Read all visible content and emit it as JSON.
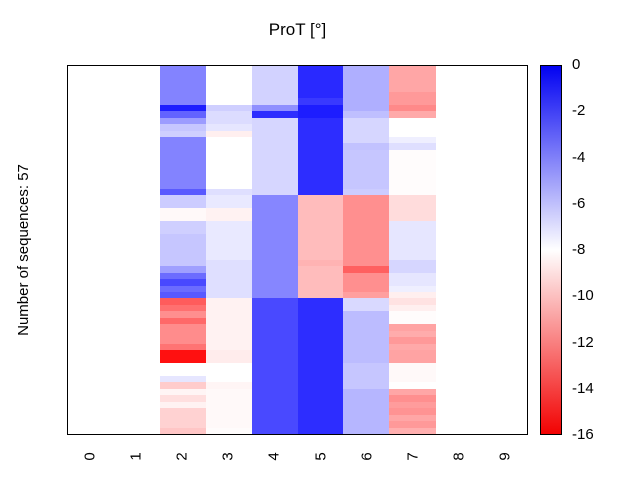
{
  "chart_data": {
    "type": "heatmap",
    "title": "ProT [°]",
    "ylabel": "Number of sequences: 57",
    "xlabel": "",
    "x_ticks": [
      "0",
      "1",
      "2",
      "3",
      "4",
      "5",
      "6",
      "7",
      "8",
      "9"
    ],
    "n_rows": 57,
    "n_cols": 10,
    "value_range": [
      -16,
      0
    ],
    "colormap": {
      "max_color": "#0000f2",
      "mid_color": "#ffffff",
      "min_color": "#f20000",
      "mid_value": -8,
      "description": "blue at 0, white at -8, red at -16; empty columns rendered white"
    },
    "colorbar_ticks": [
      "0",
      "-2",
      "-4",
      "-6",
      "-8",
      "-10",
      "-12",
      "-14",
      "-16"
    ],
    "legend_position": "right",
    "grid": false,
    "values": [
      [
        null,
        null,
        -4.1,
        -8.0,
        -6.6,
        -1.3,
        -5.5,
        -10.8,
        null,
        null
      ],
      [
        null,
        null,
        -4.1,
        -8.0,
        -6.6,
        -1.3,
        -5.5,
        -10.8,
        null,
        null
      ],
      [
        null,
        null,
        -4.1,
        -8.0,
        -6.6,
        -1.3,
        -5.5,
        -10.8,
        null,
        null
      ],
      [
        null,
        null,
        -4.1,
        -8.0,
        -6.6,
        -1.3,
        -5.5,
        -10.8,
        null,
        null
      ],
      [
        null,
        null,
        -4.1,
        -8.0,
        -6.6,
        -1.3,
        -5.5,
        -11.2,
        null,
        null
      ],
      [
        null,
        null,
        -4.1,
        -8.0,
        -6.6,
        -1.8,
        -5.5,
        -11.2,
        null,
        null
      ],
      [
        null,
        null,
        -0.9,
        -6.5,
        -4.5,
        -0.9,
        -5.5,
        -11.7,
        null,
        null
      ],
      [
        null,
        null,
        -3.1,
        -6.9,
        -1.4,
        -0.9,
        -6.0,
        -10.7,
        null,
        null
      ],
      [
        null,
        null,
        -4.9,
        -6.9,
        -6.7,
        -1.4,
        -6.7,
        -8.0,
        null,
        null
      ],
      [
        null,
        null,
        -6.2,
        -7.2,
        -6.7,
        -1.4,
        -6.7,
        -8.0,
        null,
        null
      ],
      [
        null,
        null,
        -6.5,
        -8.5,
        -6.7,
        -1.4,
        -6.7,
        -8.0,
        null,
        null
      ],
      [
        null,
        null,
        -4.1,
        -8.0,
        -6.7,
        -1.4,
        -6.7,
        -7.5,
        null,
        null
      ],
      [
        null,
        null,
        -4.1,
        -8.0,
        -6.7,
        -1.4,
        -6.1,
        -7.0,
        null,
        null
      ],
      [
        null,
        null,
        -4.1,
        -8.0,
        -6.7,
        -1.4,
        -6.2,
        -8.1,
        null,
        null
      ],
      [
        null,
        null,
        -4.1,
        -8.0,
        -6.7,
        -1.4,
        -6.2,
        -8.1,
        null,
        null
      ],
      [
        null,
        null,
        -4.1,
        -8.0,
        -6.7,
        -1.4,
        -6.2,
        -8.1,
        null,
        null
      ],
      [
        null,
        null,
        -4.1,
        -8.0,
        -6.7,
        -1.4,
        -6.2,
        -8.1,
        null,
        null
      ],
      [
        null,
        null,
        -4.1,
        -8.0,
        -6.7,
        -1.4,
        -6.2,
        -8.1,
        null,
        null
      ],
      [
        null,
        null,
        -4.1,
        -8.0,
        -6.7,
        -1.4,
        -6.2,
        -8.1,
        null,
        null
      ],
      [
        null,
        null,
        -2.8,
        -7.0,
        -6.7,
        -1.4,
        -6.4,
        -8.1,
        null,
        null
      ],
      [
        null,
        null,
        -6.4,
        -7.3,
        -4.2,
        -10.1,
        -11.5,
        -9.1,
        null,
        null
      ],
      [
        null,
        null,
        -6.4,
        -7.3,
        -4.2,
        -10.1,
        -11.5,
        -9.1,
        null,
        null
      ],
      [
        null,
        null,
        -8.2,
        -8.4,
        -4.2,
        -10.1,
        -11.5,
        -9.1,
        null,
        null
      ],
      [
        null,
        null,
        -8.2,
        -8.4,
        -4.2,
        -10.1,
        -11.5,
        -9.1,
        null,
        null
      ],
      [
        null,
        null,
        -6.5,
        -7.3,
        -4.2,
        -10.1,
        -11.5,
        -7.2,
        null,
        null
      ],
      [
        null,
        null,
        -6.5,
        -7.3,
        -4.2,
        -10.1,
        -11.5,
        -7.2,
        null,
        null
      ],
      [
        null,
        null,
        -6.2,
        -7.3,
        -4.2,
        -10.1,
        -11.5,
        -7.2,
        null,
        null
      ],
      [
        null,
        null,
        -6.2,
        -7.3,
        -4.2,
        -10.1,
        -11.5,
        -7.2,
        null,
        null
      ],
      [
        null,
        null,
        -6.2,
        -7.3,
        -4.2,
        -10.1,
        -11.5,
        -7.2,
        null,
        null
      ],
      [
        null,
        null,
        -6.2,
        -7.3,
        -4.2,
        -10.1,
        -11.5,
        -7.2,
        null,
        null
      ],
      [
        null,
        null,
        -6.2,
        -7.0,
        -4.2,
        -10.4,
        -11.5,
        -6.7,
        null,
        null
      ],
      [
        null,
        null,
        -5.0,
        -7.0,
        -4.2,
        -10.1,
        -13.0,
        -6.7,
        null,
        null
      ],
      [
        null,
        null,
        -3.4,
        -7.0,
        -4.2,
        -10.1,
        -11.5,
        -7.2,
        null,
        null
      ],
      [
        null,
        null,
        -2.3,
        -7.0,
        -4.2,
        -10.1,
        -11.5,
        -7.2,
        null,
        null
      ],
      [
        null,
        null,
        -3.4,
        -7.0,
        -4.2,
        -10.1,
        -11.5,
        -7.5,
        null,
        null
      ],
      [
        null,
        null,
        -2.8,
        -7.0,
        -4.2,
        -10.1,
        -11.0,
        -8.5,
        null,
        null
      ],
      [
        null,
        null,
        -13.1,
        -8.4,
        -2.3,
        -1.4,
        -6.8,
        -8.9,
        null,
        null
      ],
      [
        null,
        null,
        -12.5,
        -8.4,
        -2.3,
        -1.4,
        -6.8,
        -8.5,
        null,
        null
      ],
      [
        null,
        null,
        -11.5,
        -8.4,
        -2.3,
        -1.4,
        -5.9,
        -8.1,
        null,
        null
      ],
      [
        null,
        null,
        -12.7,
        -8.4,
        -2.3,
        -1.4,
        -5.9,
        -8.1,
        null,
        null
      ],
      [
        null,
        null,
        -11.6,
        -8.4,
        -2.3,
        -1.4,
        -5.9,
        -10.9,
        null,
        null
      ],
      [
        null,
        null,
        -11.6,
        -8.4,
        -2.3,
        -1.4,
        -5.9,
        -10.6,
        null,
        null
      ],
      [
        null,
        null,
        -11.6,
        -8.4,
        -2.3,
        -1.4,
        -5.9,
        -11.2,
        null,
        null
      ],
      [
        null,
        null,
        -12.4,
        -8.4,
        -2.3,
        -1.4,
        -5.9,
        -10.7,
        null,
        null
      ],
      [
        null,
        null,
        -15.5,
        -8.6,
        -2.3,
        -1.4,
        -5.9,
        -10.9,
        null,
        null
      ],
      [
        null,
        null,
        -15.5,
        -8.6,
        -2.3,
        -1.4,
        -5.9,
        -10.9,
        null,
        null
      ],
      [
        null,
        null,
        -8.0,
        -8.0,
        -2.3,
        -1.4,
        -6.2,
        -8.2,
        null,
        null
      ],
      [
        null,
        null,
        -8.0,
        -8.0,
        -2.3,
        -1.4,
        -6.2,
        -8.2,
        null,
        null
      ],
      [
        null,
        null,
        -7.2,
        -8.0,
        -2.3,
        -1.4,
        -6.2,
        -8.2,
        null,
        null
      ],
      [
        null,
        null,
        -9.6,
        -8.3,
        -2.3,
        -1.4,
        -6.2,
        -8.0,
        null,
        null
      ],
      [
        null,
        null,
        -8.3,
        -8.2,
        -2.3,
        -1.4,
        -5.7,
        -10.8,
        null,
        null
      ],
      [
        null,
        null,
        -9.0,
        -8.2,
        -2.3,
        -1.4,
        -5.7,
        -11.5,
        null,
        null
      ],
      [
        null,
        null,
        -8.4,
        -8.2,
        -2.3,
        -1.4,
        -5.7,
        -11.1,
        null,
        null
      ],
      [
        null,
        null,
        -9.4,
        -8.2,
        -2.3,
        -1.4,
        -5.7,
        -11.4,
        null,
        null
      ],
      [
        null,
        null,
        -9.4,
        -8.2,
        -2.3,
        -1.4,
        -5.7,
        -10.8,
        null,
        null
      ],
      [
        null,
        null,
        -9.4,
        -8.2,
        -2.3,
        -1.4,
        -5.7,
        -11.2,
        null,
        null
      ],
      [
        null,
        null,
        -9.8,
        -8.1,
        -2.3,
        -1.4,
        -5.7,
        -10.5,
        null,
        null
      ]
    ]
  }
}
